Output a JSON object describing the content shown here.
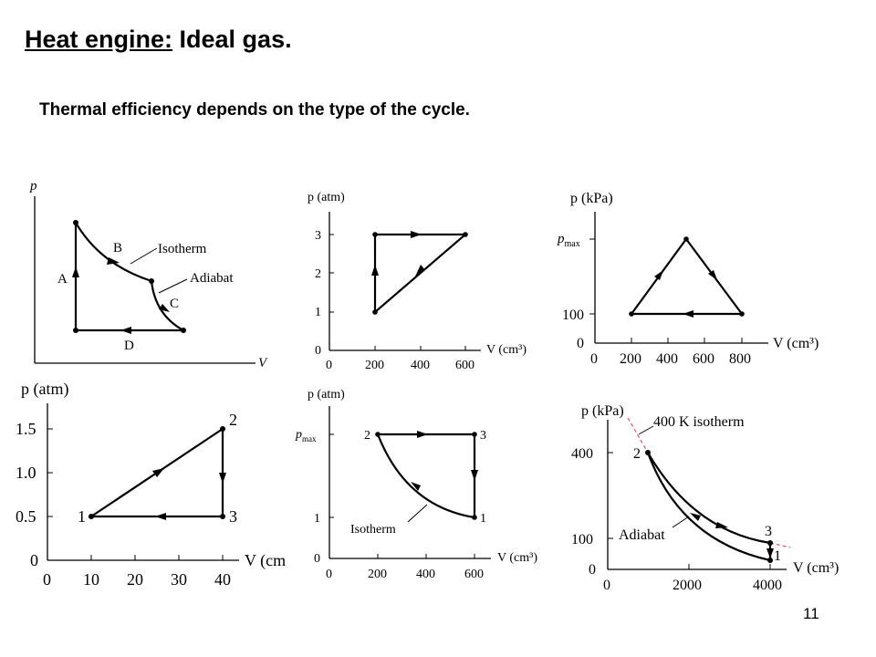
{
  "slide": {
    "title_underlined": "Heat engine:",
    "title_rest": " Ideal gas.",
    "subtitle": "Thermal efficiency depends on the type of the cycle.",
    "page_number": "11"
  },
  "diagrams": {
    "d1": {
      "ylabel": "p",
      "xlabel": "V",
      "labels": {
        "A": "A",
        "B": "B",
        "C": "C",
        "D": "D",
        "isotherm": "Isotherm",
        "adiabat": "Adiabat"
      }
    },
    "d2": {
      "ylabel": "p (atm)",
      "xlabel": "V (cm³)",
      "yticks": [
        "0",
        "1",
        "2",
        "3"
      ],
      "xticks": [
        "0",
        "200",
        "400",
        "600"
      ]
    },
    "d3": {
      "ylabel": "p (kPa)",
      "xlabel": "V (cm³)",
      "yticks": [
        "0",
        "100"
      ],
      "ymax_label": "p",
      "ymax_sub": "max",
      "xticks": [
        "0",
        "200",
        "400",
        "600",
        "800"
      ]
    },
    "d4": {
      "ylabel": "p (atm)",
      "xlabel": "V (cm",
      "yticks": [
        "0",
        "0.5",
        "1.0",
        "1.5"
      ],
      "xticks": [
        "0",
        "10",
        "20",
        "30",
        "40"
      ],
      "points": [
        "1",
        "2",
        "3"
      ]
    },
    "d5": {
      "ylabel": "p (atm)",
      "xlabel": "V (cm³)",
      "yticks": [
        "0",
        "1"
      ],
      "ymax_label": "p",
      "ymax_sub": "max",
      "xticks": [
        "0",
        "200",
        "400",
        "600"
      ],
      "points": [
        "1",
        "2",
        "3"
      ],
      "isotherm": "Isotherm"
    },
    "d6": {
      "ylabel": "p (kPa)",
      "xlabel": "V (cm³)",
      "yticks": [
        "0",
        "100",
        "400"
      ],
      "xticks": [
        "0",
        "2000",
        "4000"
      ],
      "points": [
        "1",
        "2",
        "3"
      ],
      "isotherm": "400 K isotherm",
      "adiabat": "Adiabat"
    }
  }
}
